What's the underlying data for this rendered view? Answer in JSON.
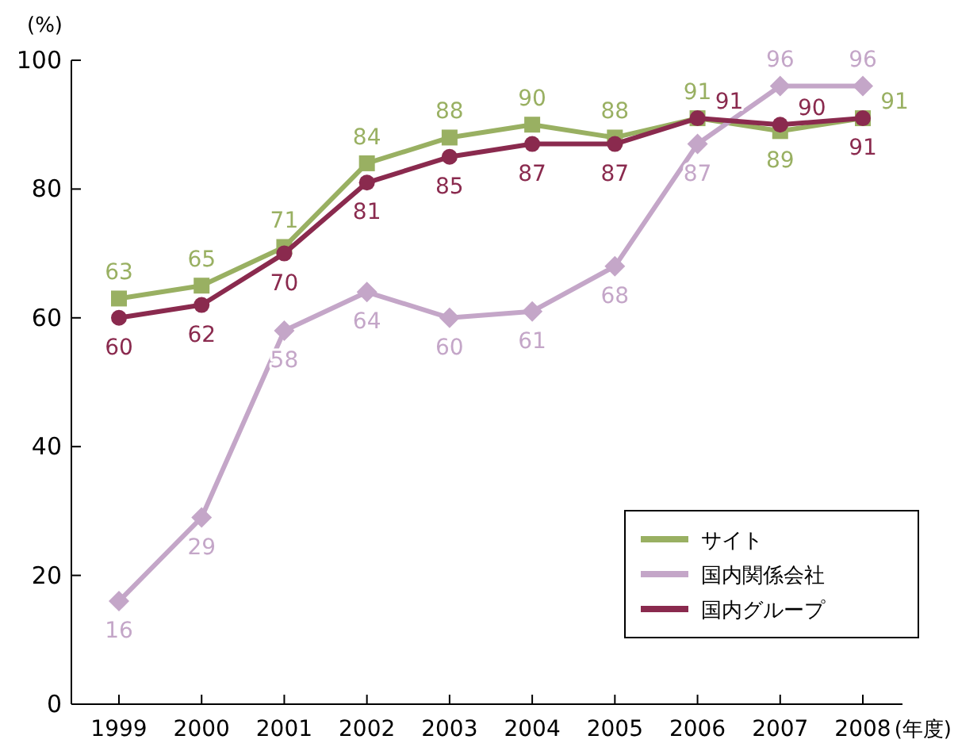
{
  "chart_data": {
    "type": "line",
    "ylabel": "(%)",
    "xlabel": "(年度)",
    "categories": [
      "1999",
      "2000",
      "2001",
      "2002",
      "2003",
      "2004",
      "2005",
      "2006",
      "2007",
      "2008"
    ],
    "ylim": [
      0,
      100
    ],
    "yticks": [
      0,
      20,
      40,
      60,
      80,
      100
    ],
    "grid": false,
    "legend": "bottom right",
    "data_labels": true,
    "line_style": "solid",
    "series": [
      {
        "name": "サイト",
        "color": "#99b062",
        "marker": "square",
        "values": [
          63,
          65,
          71,
          84,
          88,
          90,
          88,
          91,
          89,
          91
        ]
      },
      {
        "name": "国内関係会社",
        "color": "#c4a6c8",
        "marker": "diamond",
        "values": [
          16,
          29,
          58,
          64,
          60,
          61,
          68,
          87,
          96,
          96
        ]
      },
      {
        "name": "国内グループ",
        "color": "#8a2a4e",
        "marker": "circle",
        "values": [
          60,
          62,
          70,
          81,
          85,
          87,
          87,
          91,
          90,
          91
        ]
      }
    ]
  }
}
